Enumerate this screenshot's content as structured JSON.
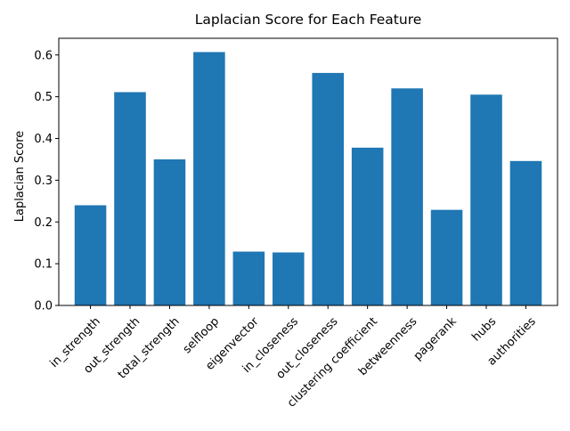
{
  "chart_data": {
    "type": "bar",
    "title": "Laplacian Score for Each Feature",
    "xlabel": "",
    "ylabel": "Laplacian Score",
    "categories": [
      "in_strength",
      "out_strength",
      "total_strength",
      "selfloop",
      "eigenvector",
      "in_closeness",
      "out_closeness",
      "clustering coefficient",
      "betweenness",
      "pagerank",
      "hubs",
      "authorities"
    ],
    "values": [
      0.24,
      0.511,
      0.35,
      0.607,
      0.129,
      0.127,
      0.557,
      0.378,
      0.52,
      0.229,
      0.505,
      0.346
    ],
    "ylim": [
      0,
      0.64
    ],
    "yticks": [
      "0.0",
      "0.1",
      "0.2",
      "0.3",
      "0.4",
      "0.5",
      "0.6"
    ],
    "ytick_values": [
      0,
      0.1,
      0.2,
      0.3,
      0.4,
      0.5,
      0.6
    ],
    "bar_color": "#1f77b4",
    "grid": false,
    "legend": "none"
  }
}
